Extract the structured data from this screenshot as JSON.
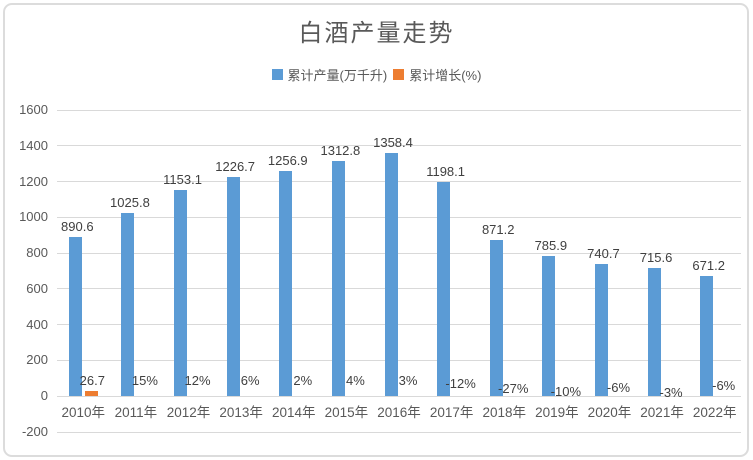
{
  "window": {
    "background": "#ffffff",
    "frame_border_color": "#dcdcdc"
  },
  "chart_data": {
    "type": "bar",
    "title": "白酒产量走势",
    "categories": [
      "2010年",
      "2011年",
      "2012年",
      "2013年",
      "2014年",
      "2015年",
      "2016年",
      "2017年",
      "2018年",
      "2019年",
      "2020年",
      "2021年",
      "2022年"
    ],
    "series": [
      {
        "name": "累计产量(万千升)",
        "color": "#5b9bd5",
        "values": [
          890.6,
          1025.8,
          1153.1,
          1226.7,
          1256.9,
          1312.8,
          1358.4,
          1198.1,
          871.2,
          785.9,
          740.7,
          715.6,
          671.2
        ],
        "labels": [
          "890.6",
          "1025.8",
          "1153.1",
          "1226.7",
          "1256.9",
          "1312.8",
          "1358.4",
          "1198.1",
          "871.2",
          "785.9",
          "740.7",
          "715.6",
          "671.2"
        ]
      },
      {
        "name": "累计增长(%)",
        "color": "#ed7d31",
        "values": [
          26.7,
          0.15,
          0.12,
          0.06,
          0.02,
          0.04,
          0.03,
          -0.12,
          -0.27,
          -0.1,
          -0.06,
          -0.03,
          -0.06
        ],
        "labels": [
          "26.7",
          "15%",
          "12%",
          "6%",
          "2%",
          "4%",
          "3%",
          "-12%",
          "-27%",
          "-10%",
          "-6%",
          "-3%",
          "-6%"
        ]
      }
    ],
    "y_axis": {
      "min": -200,
      "max": 1600,
      "step": 200,
      "ticks": [
        "1600",
        "1400",
        "1200",
        "1000",
        "800",
        "600",
        "400",
        "200",
        "0",
        "-200"
      ]
    },
    "grid": true,
    "legend_position": "top",
    "axis_text_color": "#595959",
    "label_text_color": "#404040",
    "gridline_color": "#d9d9d9"
  }
}
